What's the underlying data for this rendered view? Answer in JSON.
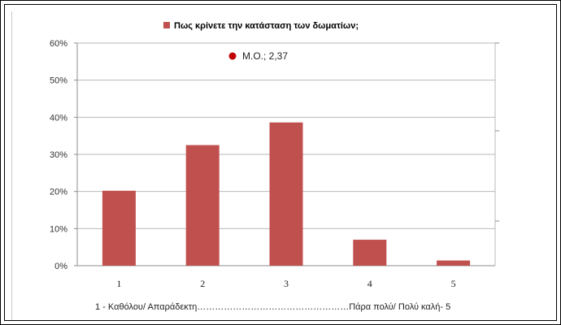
{
  "chart_data": {
    "type": "bar",
    "title": "Πως κρίνετε την κατάσταση των δωματίων;",
    "categories": [
      "1",
      "2",
      "3",
      "4",
      "5"
    ],
    "series": [
      {
        "name": "Πως κρίνετε την κατάσταση των δωματίων;",
        "values": [
          20.2,
          32.5,
          38.6,
          7.0,
          1.4
        ],
        "color": "#c0504d"
      }
    ],
    "ylim": [
      0,
      60
    ],
    "yticks": [
      "0%",
      "10%",
      "20%",
      "30%",
      "40%",
      "50%",
      "60%"
    ],
    "ytick_values": [
      0,
      10,
      20,
      30,
      40,
      50,
      60
    ],
    "legend_position": "top",
    "grid": true,
    "annotation": {
      "text": "Μ.Ο.; 2,37",
      "marker_color": "#c00000"
    },
    "caption": "1 -  Καθόλου/ Απαράδεκτη……………………………………………Πάρα  πολύ/ Πολύ καλή- 5"
  }
}
